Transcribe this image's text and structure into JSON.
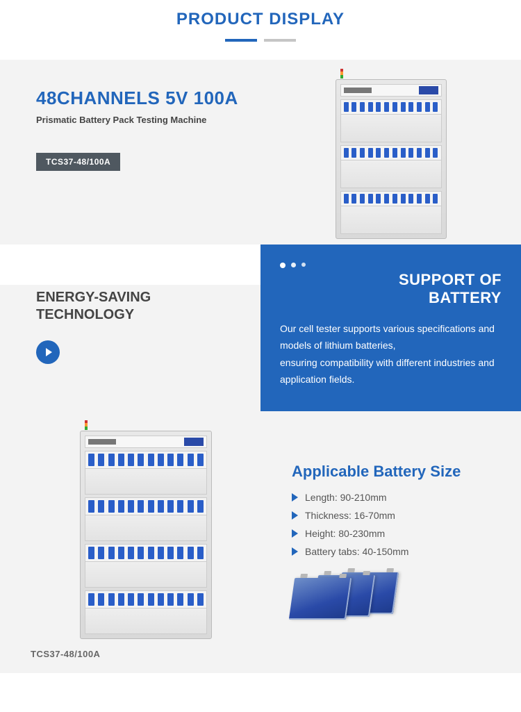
{
  "header": {
    "title": "PRODUCT DISPLAY"
  },
  "hero": {
    "title": "48CHANNELS 5V 100A",
    "subtitle": "Prismatic Battery Pack Testing Machine",
    "model": "TCS37-48/100A"
  },
  "split": {
    "left_title_line1": "ENERGY-SAVING",
    "left_title_line2": "TECHNOLOGY",
    "right_title_line1": "SUPPORT OF",
    "right_title_line2": "BATTERY",
    "right_body1": "Our cell tester supports various specifications and models of lithium batteries,",
    "right_body2": "ensuring compatibility with different industries and application fields."
  },
  "spec": {
    "caption": "TCS37-48/100A",
    "title": "Applicable Battery Size",
    "items": [
      "Length:  90-210mm",
      "Thickness: 16-70mm",
      "Height: 80-230mm",
      "Battery tabs: 40-150mm"
    ]
  },
  "colors": {
    "brand": "#2266bb",
    "badge_bg": "#4f5860",
    "page_bg": "#f3f3f3"
  }
}
